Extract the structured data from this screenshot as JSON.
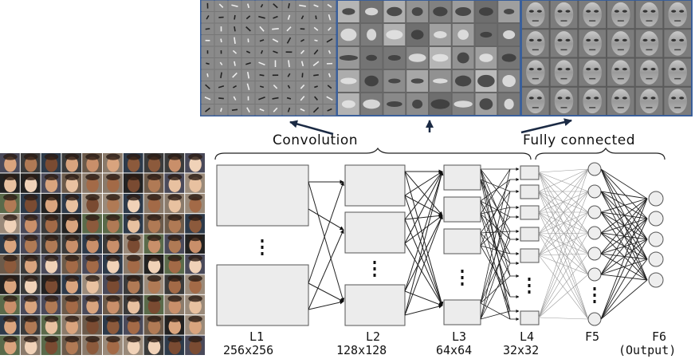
{
  "groups": {
    "convolution": "Convolution",
    "fully_connected": "Fully connected"
  },
  "layers": [
    {
      "name": "L1",
      "size": "256x256"
    },
    {
      "name": "L2",
      "size": "128x128"
    },
    {
      "name": "L3",
      "size": "64x64"
    },
    {
      "name": "L4",
      "size": "32x32"
    },
    {
      "name": "F5",
      "size": ""
    },
    {
      "name": "F6",
      "size": "(Output)"
    }
  ],
  "feature_panels": [
    "edge-filters-grid",
    "face-parts-grid",
    "whole-faces-grid"
  ],
  "input_grid": {
    "rows": 10,
    "cols": 10
  },
  "colors": {
    "panel_border": "#3a5f9a",
    "box_fill": "#ececec",
    "line": "#222222"
  }
}
